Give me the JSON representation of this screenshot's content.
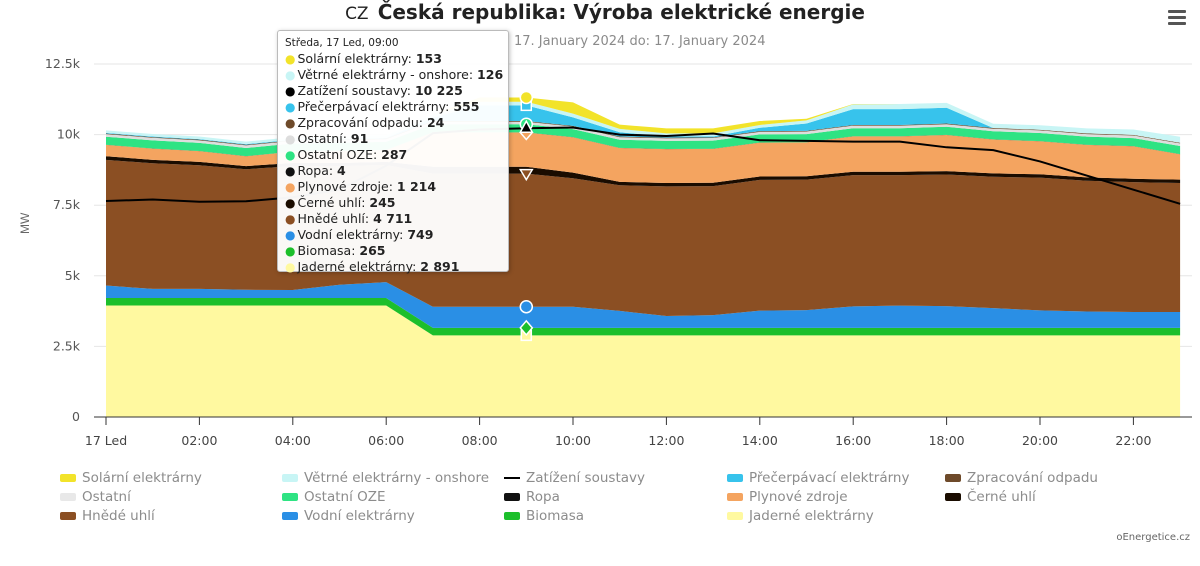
{
  "header": {
    "flag": "CZ",
    "title": "Česká republika: Výroba elektrické energie",
    "subtitle": "17. January 2024 do: 17. January 2024"
  },
  "source_credit": "oEnergetice.cz",
  "tooltip": {
    "header": "Středa, 17 Led, 09:00",
    "rows": [
      {
        "label": "Solární elektrárny",
        "value": "153",
        "color": "#f2e32a"
      },
      {
        "label": "Větrné elektrárny - onshore",
        "value": "126",
        "color": "#c8f5f5"
      },
      {
        "label": "Zatížení soustavy",
        "value": "10 225",
        "color": "#000000"
      },
      {
        "label": "Přečerpávací elektrárny",
        "value": "555",
        "color": "#37c3ec"
      },
      {
        "label": "Zpracování odpadu",
        "value": "24",
        "color": "#6e4a2a"
      },
      {
        "label": "Ostatní",
        "value": "91",
        "color": "#dddddd"
      },
      {
        "label": "Ostatní OZE",
        "value": "287",
        "color": "#2ee383"
      },
      {
        "label": "Ropa",
        "value": "4",
        "color": "#111111"
      },
      {
        "label": "Plynové zdroje",
        "value": "1 214",
        "color": "#f4a460"
      },
      {
        "label": "Černé uhlí",
        "value": "245",
        "color": "#1a0c00"
      },
      {
        "label": "Hnědé uhlí",
        "value": "4 711",
        "color": "#8b4f23"
      },
      {
        "label": "Vodní elektrárny",
        "value": "749",
        "color": "#2a8fe5"
      },
      {
        "label": "Biomasa",
        "value": "265",
        "color": "#1cbf2b"
      },
      {
        "label": "Jaderné elektrárny",
        "value": "2 891",
        "color": "#fff9a0"
      }
    ]
  },
  "menu_icon": "hamburger-icon",
  "chart_data": {
    "type": "area",
    "stacked": true,
    "title": "Česká republika: Výroba elektrické energie",
    "subtitle": "17. January 2024 do: 17. January 2024",
    "ylabel": "MW",
    "ylim": [
      0,
      12500
    ],
    "yticks": [
      0,
      2500,
      5000,
      7500,
      10000,
      12500
    ],
    "ytick_labels": [
      "0",
      "2.5k",
      "5k",
      "7.5k",
      "10k",
      "12.5k"
    ],
    "x": [
      "00:00",
      "01:00",
      "02:00",
      "03:00",
      "04:00",
      "05:00",
      "06:00",
      "07:00",
      "08:00",
      "09:00",
      "10:00",
      "11:00",
      "12:00",
      "13:00",
      "14:00",
      "15:00",
      "16:00",
      "17:00",
      "18:00",
      "19:00",
      "20:00",
      "21:00",
      "22:00",
      "23:00"
    ],
    "xtick_labels": [
      "17 Led",
      "02:00",
      "04:00",
      "06:00",
      "08:00",
      "10:00",
      "12:00",
      "14:00",
      "16:00",
      "18:00",
      "20:00",
      "22:00"
    ],
    "xtick_hours": [
      0,
      2,
      4,
      6,
      8,
      10,
      12,
      14,
      16,
      18,
      20,
      22
    ],
    "highlight_hour": 9,
    "grid": true,
    "legend_position": "bottom",
    "series": [
      {
        "name": "Jaderné elektrárny",
        "color": "#fff9a0",
        "values": [
          3950,
          3950,
          3950,
          3950,
          3950,
          3950,
          3950,
          2891,
          2891,
          2891,
          2891,
          2891,
          2891,
          2891,
          2891,
          2891,
          2891,
          2891,
          2891,
          2891,
          2891,
          2891,
          2891,
          2891
        ]
      },
      {
        "name": "Biomasa",
        "color": "#1cbf2b",
        "values": [
          265,
          265,
          265,
          265,
          265,
          265,
          265,
          265,
          265,
          265,
          265,
          265,
          265,
          265,
          265,
          265,
          265,
          265,
          265,
          265,
          265,
          265,
          265,
          265
        ]
      },
      {
        "name": "Vodní elektrárny",
        "color": "#2a8fe5",
        "values": [
          440,
          320,
          320,
          290,
          280,
          470,
          560,
          749,
          749,
          749,
          749,
          600,
          420,
          450,
          610,
          630,
          760,
          790,
          770,
          700,
          620,
          580,
          560,
          560
        ]
      },
      {
        "name": "Hnědé uhlí",
        "color": "#8b4f23",
        "values": [
          4450,
          4450,
          4380,
          4270,
          4390,
          4200,
          4150,
          4711,
          4711,
          4711,
          4550,
          4450,
          4590,
          4570,
          4630,
          4620,
          4650,
          4620,
          4660,
          4650,
          4700,
          4630,
          4600,
          4570
        ]
      },
      {
        "name": "Černé uhlí",
        "color": "#1a0c00",
        "values": [
          130,
          120,
          120,
          110,
          110,
          110,
          110,
          245,
          245,
          245,
          200,
          120,
          120,
          120,
          120,
          120,
          120,
          120,
          120,
          120,
          120,
          120,
          120,
          120
        ]
      },
      {
        "name": "Plynové zdroje",
        "color": "#f4a460",
        "values": [
          400,
          400,
          380,
          350,
          400,
          420,
          420,
          1214,
          1214,
          1214,
          1250,
          1200,
          1200,
          1200,
          1200,
          1200,
          1250,
          1250,
          1280,
          1200,
          1170,
          1150,
          1150,
          900
        ]
      },
      {
        "name": "Ropa",
        "color": "#111111",
        "values": [
          4,
          4,
          4,
          4,
          4,
          4,
          4,
          4,
          4,
          4,
          4,
          4,
          4,
          4,
          4,
          4,
          4,
          4,
          4,
          4,
          4,
          4,
          4,
          4
        ]
      },
      {
        "name": "Ostatní OZE",
        "color": "#2ee383",
        "values": [
          287,
          287,
          287,
          287,
          287,
          287,
          287,
          287,
          287,
          287,
          287,
          287,
          287,
          287,
          287,
          287,
          287,
          287,
          287,
          287,
          287,
          287,
          287,
          287
        ]
      },
      {
        "name": "Ostatní",
        "color": "#dddddd",
        "values": [
          91,
          91,
          91,
          91,
          91,
          91,
          91,
          91,
          91,
          91,
          91,
          91,
          91,
          91,
          91,
          91,
          91,
          91,
          91,
          91,
          91,
          91,
          91,
          91
        ]
      },
      {
        "name": "Zpracování odpadu",
        "color": "#6e4a2a",
        "values": [
          24,
          24,
          24,
          24,
          24,
          24,
          24,
          24,
          24,
          24,
          24,
          24,
          24,
          24,
          24,
          24,
          24,
          24,
          24,
          24,
          24,
          24,
          24,
          24
        ]
      },
      {
        "name": "Přečerpávací elektrárny",
        "color": "#37c3ec",
        "values": [
          20,
          20,
          20,
          20,
          20,
          20,
          20,
          120,
          555,
          555,
          300,
          150,
          40,
          30,
          120,
          260,
          560,
          560,
          560,
          0,
          0,
          0,
          0,
          0
        ]
      },
      {
        "name": "Větrné elektrárny - onshore",
        "color": "#c8f5f5",
        "values": [
          90,
          90,
          90,
          90,
          90,
          90,
          90,
          110,
          126,
          126,
          130,
          120,
          110,
          110,
          100,
          110,
          170,
          180,
          170,
          150,
          160,
          180,
          190,
          210
        ]
      },
      {
        "name": "Solární elektrárny",
        "color": "#f2e32a",
        "values": [
          0,
          0,
          0,
          0,
          0,
          0,
          0,
          0,
          153,
          153,
          400,
          150,
          180,
          180,
          140,
          60,
          10,
          0,
          0,
          0,
          0,
          0,
          0,
          0
        ]
      }
    ],
    "line_series": [
      {
        "name": "Zatížení soustavy",
        "color": "#000000",
        "values": [
          7650,
          7700,
          7620,
          7640,
          7780,
          8050,
          8900,
          10050,
          10180,
          10225,
          10250,
          10000,
          9950,
          10040,
          9800,
          9780,
          9750,
          9750,
          9550,
          9450,
          9050,
          8550,
          8050,
          7550
        ]
      }
    ]
  },
  "legend": [
    {
      "label": "Solární elektrárny",
      "color": "#f2e32a",
      "kind": "area"
    },
    {
      "label": "Větrné elektrárny - onshore",
      "color": "#c8f5f5",
      "kind": "area"
    },
    {
      "label": "Zatížení soustavy",
      "color": "#000000",
      "kind": "line"
    },
    {
      "label": "Přečerpávací elektrárny",
      "color": "#37c3ec",
      "kind": "area"
    },
    {
      "label": "Zpracování odpadu",
      "color": "#6e4a2a",
      "kind": "area"
    },
    {
      "label": "Ostatní",
      "color": "#dddddd",
      "kind": "area"
    },
    {
      "label": "Ostatní OZE",
      "color": "#2ee383",
      "kind": "area"
    },
    {
      "label": "Ropa",
      "color": "#111111",
      "kind": "area"
    },
    {
      "label": "Plynové zdroje",
      "color": "#f4a460",
      "kind": "area"
    },
    {
      "label": "Černé uhlí",
      "color": "#1a0c00",
      "kind": "area"
    },
    {
      "label": "Hnědé uhlí",
      "color": "#8b4f23",
      "kind": "area"
    },
    {
      "label": "Vodní elektrárny",
      "color": "#2a8fe5",
      "kind": "area"
    },
    {
      "label": "Biomasa",
      "color": "#1cbf2b",
      "kind": "area"
    },
    {
      "label": "Jaderné elektrárny",
      "color": "#fff9a0",
      "kind": "area"
    }
  ]
}
